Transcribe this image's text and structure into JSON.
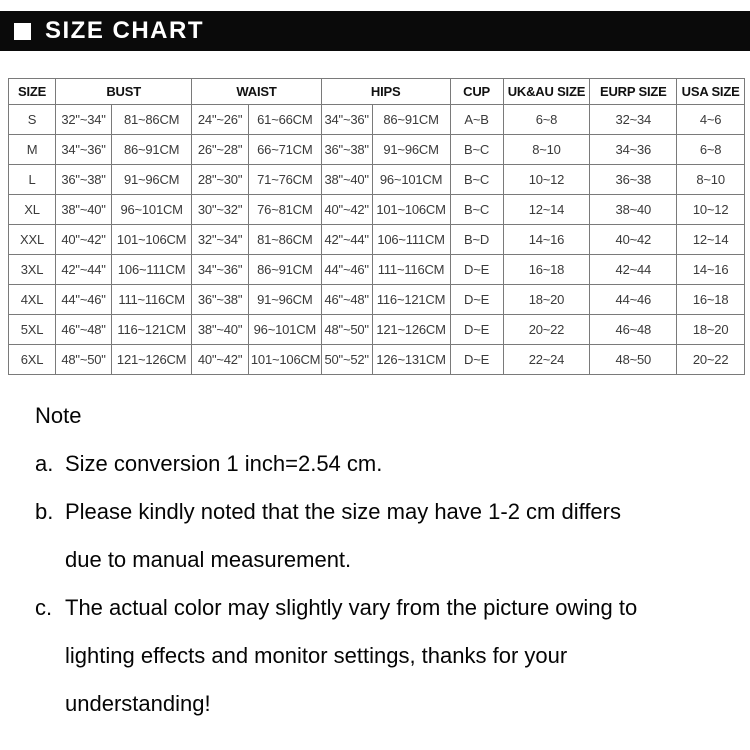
{
  "banner": {
    "title": "SIZE CHART"
  },
  "colors": {
    "banner_bg": "#0a0a0a",
    "banner_text": "#ffffff",
    "table_border": "#7a7a7a",
    "body_text": "#000000"
  },
  "table": {
    "headers": [
      {
        "label": "SIZE",
        "colspan": 1
      },
      {
        "label": "BUST",
        "colspan": 2
      },
      {
        "label": "WAIST",
        "colspan": 2
      },
      {
        "label": "HIPS",
        "colspan": 2
      },
      {
        "label": "CUP",
        "colspan": 1
      },
      {
        "label": "UK&AU SIZE",
        "colspan": 1
      },
      {
        "label": "EURP SIZE",
        "colspan": 1
      },
      {
        "label": "USA SIZE",
        "colspan": 1
      }
    ],
    "rows": [
      [
        "S",
        "32\"~34\"",
        "81~86CM",
        "24\"~26\"",
        "61~66CM",
        "34\"~36\"",
        "86~91CM",
        "A~B",
        "6~8",
        "32~34",
        "4~6"
      ],
      [
        "M",
        "34\"~36\"",
        "86~91CM",
        "26\"~28\"",
        "66~71CM",
        "36\"~38\"",
        "91~96CM",
        "B~C",
        "8~10",
        "34~36",
        "6~8"
      ],
      [
        "L",
        "36\"~38\"",
        "91~96CM",
        "28\"~30\"",
        "71~76CM",
        "38\"~40\"",
        "96~101CM",
        "B~C",
        "10~12",
        "36~38",
        "8~10"
      ],
      [
        "XL",
        "38\"~40\"",
        "96~101CM",
        "30\"~32\"",
        "76~81CM",
        "40\"~42\"",
        "101~106CM",
        "B~C",
        "12~14",
        "38~40",
        "10~12"
      ],
      [
        "XXL",
        "40\"~42\"",
        "101~106CM",
        "32\"~34\"",
        "81~86CM",
        "42\"~44\"",
        "106~111CM",
        "B~D",
        "14~16",
        "40~42",
        "12~14"
      ],
      [
        "3XL",
        "42\"~44\"",
        "106~111CM",
        "34\"~36\"",
        "86~91CM",
        "44\"~46\"",
        "111~116CM",
        "D~E",
        "16~18",
        "42~44",
        "14~16"
      ],
      [
        "4XL",
        "44\"~46\"",
        "111~116CM",
        "36\"~38\"",
        "91~96CM",
        "46\"~48\"",
        "116~121CM",
        "D~E",
        "18~20",
        "44~46",
        "16~18"
      ],
      [
        "5XL",
        "46\"~48\"",
        "116~121CM",
        "38\"~40\"",
        "96~101CM",
        "48\"~50\"",
        "121~126CM",
        "D~E",
        "20~22",
        "46~48",
        "18~20"
      ],
      [
        "6XL",
        "48\"~50\"",
        "121~126CM",
        "40\"~42\"",
        "101~106CM",
        "50\"~52\"",
        "126~131CM",
        "D~E",
        "22~24",
        "48~50",
        "20~22"
      ]
    ]
  },
  "notes": {
    "title": "Note",
    "items": [
      {
        "prefix": "a.",
        "lines": [
          "Size conversion 1 inch=2.54 cm."
        ]
      },
      {
        "prefix": "b.",
        "lines": [
          "Please kindly noted that the size may have 1-2 cm differs",
          "due to manual measurement."
        ]
      },
      {
        "prefix": "c.",
        "lines": [
          "The actual color may slightly vary from the picture owing to",
          "lighting effects and monitor settings, thanks for your",
          "understanding!"
        ]
      }
    ]
  }
}
